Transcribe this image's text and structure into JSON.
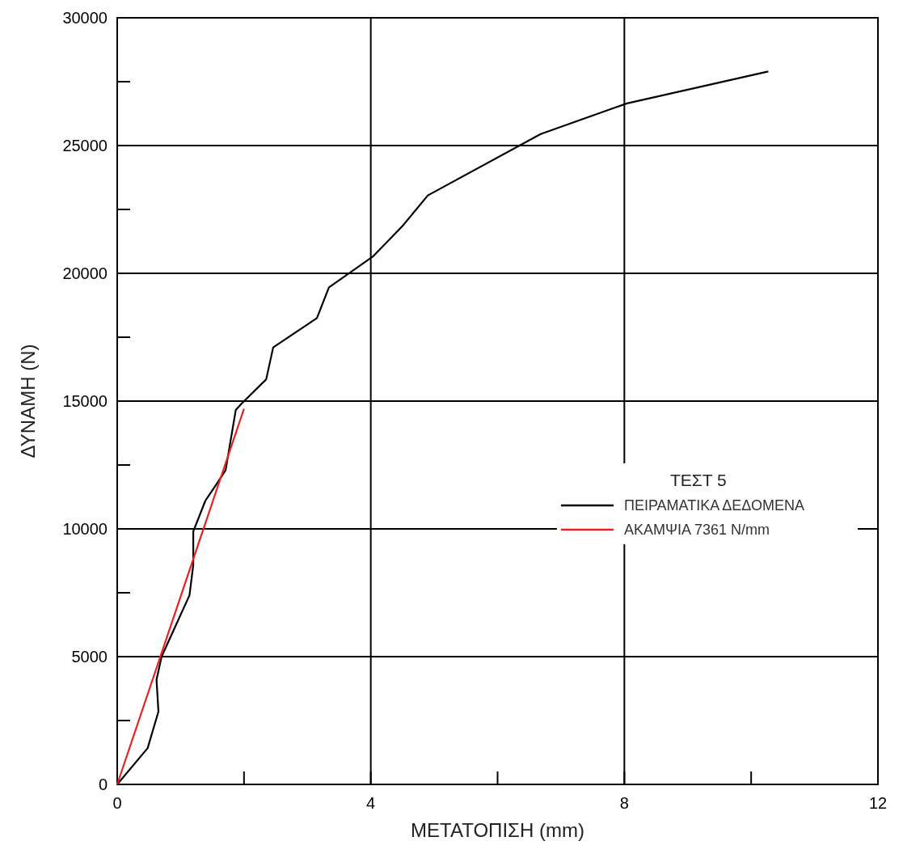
{
  "chart_data": {
    "type": "line",
    "xlabel": "ΜΕΤΑΤΟΠΙΣΗ (mm)",
    "ylabel": "ΔΥΝΑΜΗ (N)",
    "legend_title": "ΤΕΣΤ 5",
    "legend": "right",
    "xlim": [
      0,
      12
    ],
    "xticks": [
      0,
      {
        "value": 2,
        "label": null
      },
      4,
      {
        "value": 6,
        "label": null
      },
      8,
      {
        "value": 10,
        "label": null
      },
      12
    ],
    "ylim": [
      0,
      30000
    ],
    "yticks": [
      0,
      {
        "value": 2500,
        "label": null
      },
      5000,
      {
        "value": 7500,
        "label": null
      },
      10000,
      {
        "value": 12500,
        "label": null
      },
      15000,
      {
        "value": 17500,
        "label": null
      },
      20000,
      {
        "value": 22500,
        "label": null
      },
      25000,
      {
        "value": 27500,
        "label": null
      },
      30000
    ],
    "grid": true,
    "line_style": "solid",
    "series": [
      {
        "name": "ΠΕΙΡΑΜΑΤΙΚΑ ΔΕΔΟΜΕΝΑ",
        "color": "#000000",
        "x": [
          0,
          0.48,
          0.65,
          0.62,
          0.7,
          1.14,
          1.2,
          1.2,
          1.39,
          1.58,
          1.71,
          1.87,
          1.96,
          2.35,
          2.46,
          3.15,
          3.34,
          4.03,
          4.5,
          4.9,
          6.68,
          8.04,
          10.27
        ],
        "values": [
          0,
          1420,
          2850,
          4100,
          5000,
          7400,
          8600,
          9900,
          11100,
          11800,
          12300,
          14650,
          14900,
          15850,
          17100,
          18250,
          19450,
          20650,
          21850,
          23050,
          25450,
          26650,
          27900
        ]
      },
      {
        "name": "ΑΚΑΜΨΙΑ 7361 N/mm",
        "color": "#e8211f",
        "x": [
          0,
          2.0
        ],
        "values": [
          0,
          14700
        ]
      }
    ]
  }
}
